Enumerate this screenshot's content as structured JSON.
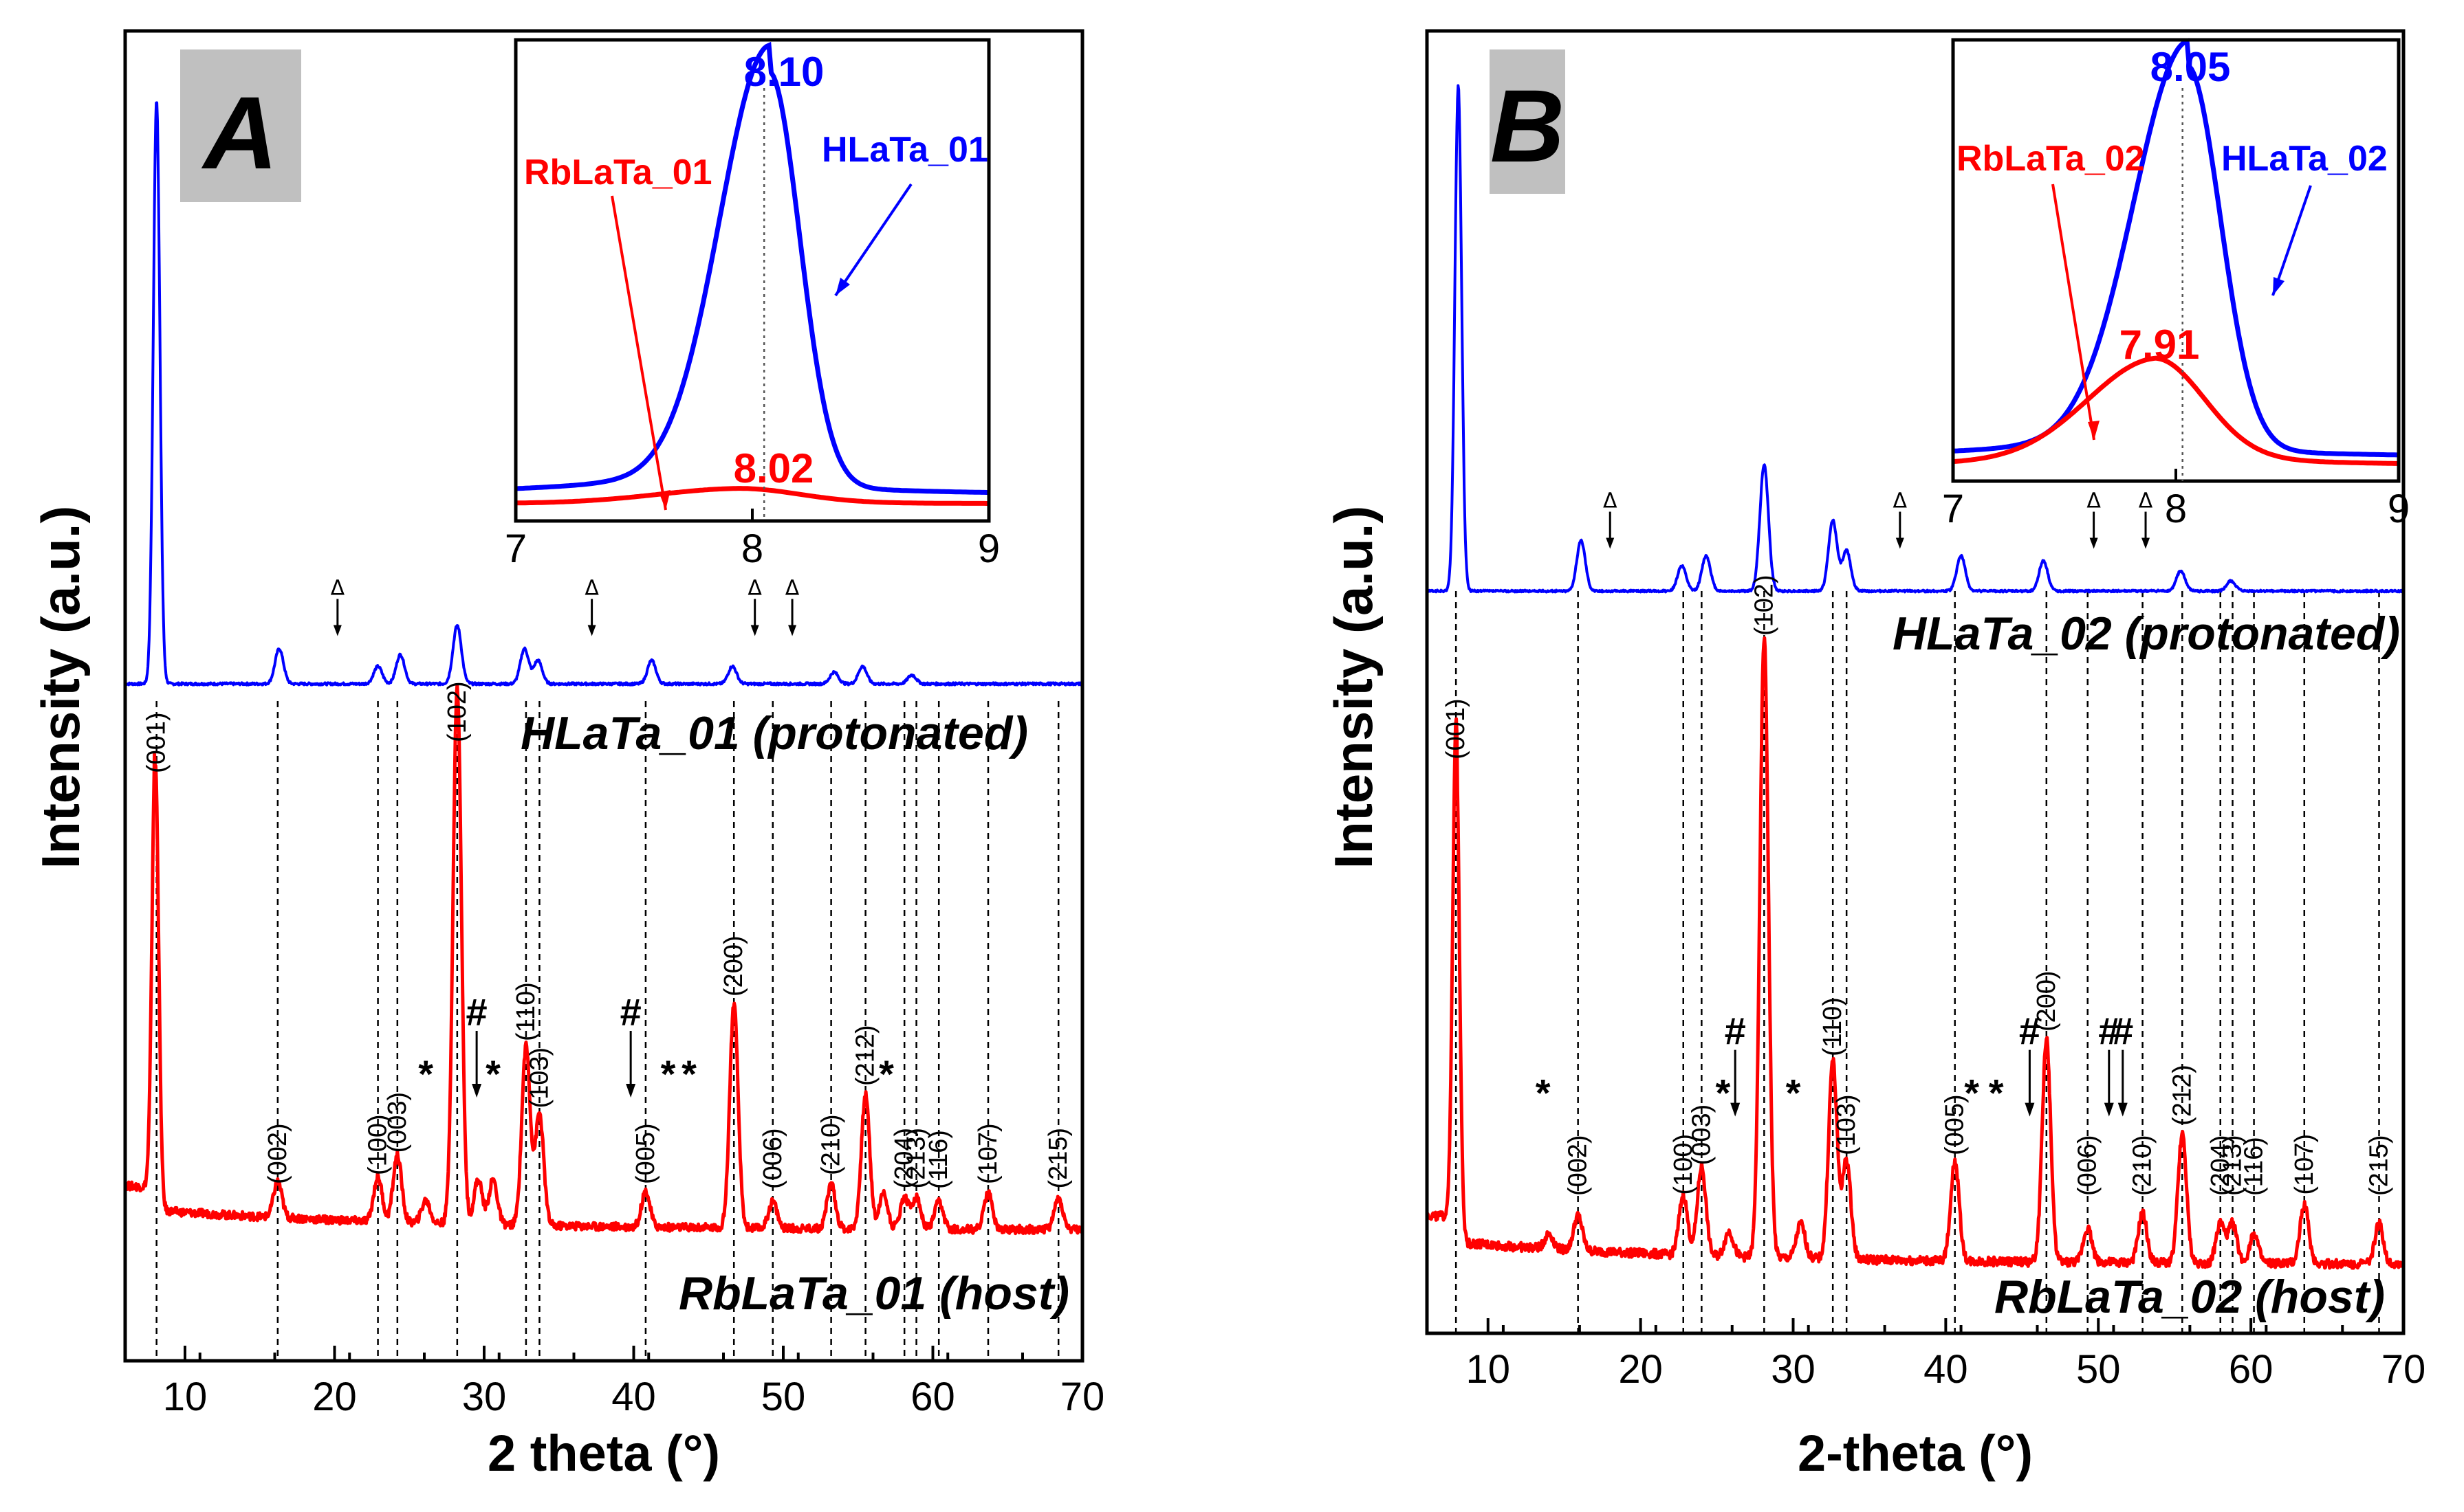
{
  "chart_data": [
    {
      "panel": "A",
      "type": "line",
      "xlabel": "2 theta (°)",
      "ylabel": "Intensity (a.u.)",
      "xlim": [
        6,
        70
      ],
      "xticks": [
        "10",
        "20",
        "30",
        "40",
        "50",
        "60",
        "70"
      ],
      "series": [
        {
          "name": "HLaTa_01 (protonated)",
          "color": "#0000ff",
          "peaks": [
            [
              8.1,
              1.0
            ],
            [
              16.3,
              0.06
            ],
            [
              22.9,
              0.03
            ],
            [
              24.4,
              0.05
            ],
            [
              28.2,
              0.1
            ],
            [
              32.7,
              0.06
            ],
            [
              33.6,
              0.04
            ],
            [
              41.2,
              0.04
            ],
            [
              46.6,
              0.03
            ],
            [
              53.4,
              0.02
            ],
            [
              55.3,
              0.03
            ],
            [
              58.6,
              0.015
            ]
          ]
        },
        {
          "name": "RbLaTa_01 (host)",
          "color": "#ff0000",
          "peaks": [
            [
              8.02,
              1.0
            ],
            [
              16.2,
              0.08
            ],
            [
              22.9,
              0.1
            ],
            [
              24.2,
              0.15
            ],
            [
              26.1,
              0.05
            ],
            [
              28.2,
              1.2
            ],
            [
              29.6,
              0.1
            ],
            [
              30.6,
              0.1
            ],
            [
              32.8,
              0.4
            ],
            [
              33.7,
              0.25
            ],
            [
              40.8,
              0.08
            ],
            [
              46.7,
              0.5
            ],
            [
              49.3,
              0.06
            ],
            [
              53.2,
              0.1
            ],
            [
              55.5,
              0.3
            ],
            [
              56.7,
              0.08
            ],
            [
              58.1,
              0.07
            ],
            [
              58.9,
              0.07
            ],
            [
              60.4,
              0.06
            ],
            [
              63.7,
              0.08
            ],
            [
              68.4,
              0.07
            ]
          ]
        }
      ],
      "hkl_labels": [
        {
          "x": 8.1,
          "text": "(001)"
        },
        {
          "x": 16.2,
          "text": "(002)"
        },
        {
          "x": 22.9,
          "text": "(100)"
        },
        {
          "x": 24.2,
          "text": "(003)"
        },
        {
          "x": 28.2,
          "text": "(102)"
        },
        {
          "x": 32.8,
          "text": "(110)"
        },
        {
          "x": 33.7,
          "text": "(103)"
        },
        {
          "x": 40.8,
          "text": "(005)"
        },
        {
          "x": 46.7,
          "text": "(200)"
        },
        {
          "x": 49.3,
          "text": "(006)"
        },
        {
          "x": 53.2,
          "text": "(210)"
        },
        {
          "x": 55.5,
          "text": "(212)"
        },
        {
          "x": 58.1,
          "text": "(204)"
        },
        {
          "x": 58.9,
          "text": "(213)"
        },
        {
          "x": 60.4,
          "text": "(116)"
        },
        {
          "x": 63.7,
          "text": "(107)"
        },
        {
          "x": 68.4,
          "text": "(215)"
        }
      ],
      "impurity_marks": [
        {
          "x": 26.1,
          "text": "*"
        },
        {
          "x": 29.5,
          "text": "#"
        },
        {
          "x": 30.6,
          "text": "*"
        },
        {
          "x": 39.8,
          "text": "#"
        },
        {
          "x": 42.3,
          "text": "*"
        },
        {
          "x": 43.7,
          "text": "*"
        },
        {
          "x": 56.9,
          "text": "*"
        }
      ],
      "protonated_triangles": [
        20.2,
        37.2,
        48.1,
        50.6
      ],
      "inset": {
        "xlim": [
          7,
          9
        ],
        "xticks": [
          "7",
          "8",
          "9"
        ],
        "blue_peak_label": "8.10",
        "red_peak_label": "8.02",
        "blue_name": "HLaTa_01",
        "red_name": "RbLaTa_01"
      }
    },
    {
      "panel": "B",
      "type": "line",
      "xlabel": "2-theta (°)",
      "ylabel": "Intensity (a.u.)",
      "xlim": [
        6,
        70
      ],
      "xticks": [
        "10",
        "20",
        "30",
        "40",
        "50",
        "60",
        "70"
      ],
      "series": [
        {
          "name": "HLaTa_02 (protonated)",
          "color": "#0000ff",
          "peaks": [
            [
              8.05,
              1.0
            ],
            [
              16.1,
              0.1
            ],
            [
              22.7,
              0.05
            ],
            [
              24.3,
              0.07
            ],
            [
              28.1,
              0.25
            ],
            [
              32.6,
              0.14
            ],
            [
              33.5,
              0.08
            ],
            [
              41.0,
              0.07
            ],
            [
              46.4,
              0.06
            ],
            [
              55.4,
              0.04
            ],
            [
              58.7,
              0.02
            ]
          ]
        },
        {
          "name": "RbLaTa_02 (host)",
          "color": "#ff0000",
          "peaks": [
            [
              7.91,
              1.0
            ],
            [
              14.0,
              0.03
            ],
            [
              15.9,
              0.07
            ],
            [
              22.8,
              0.12
            ],
            [
              24.0,
              0.18
            ],
            [
              25.8,
              0.05
            ],
            [
              28.1,
              1.25
            ],
            [
              30.5,
              0.07
            ],
            [
              32.6,
              0.4
            ],
            [
              33.5,
              0.2
            ],
            [
              40.6,
              0.2
            ],
            [
              46.6,
              0.45
            ],
            [
              49.3,
              0.07
            ],
            [
              52.9,
              0.1
            ],
            [
              55.5,
              0.26
            ],
            [
              58.0,
              0.08
            ],
            [
              58.8,
              0.08
            ],
            [
              60.2,
              0.06
            ],
            [
              63.5,
              0.12
            ],
            [
              68.4,
              0.08
            ]
          ]
        }
      ],
      "hkl_labels": [
        {
          "x": 7.9,
          "text": "(001)"
        },
        {
          "x": 15.9,
          "text": "(002)"
        },
        {
          "x": 22.8,
          "text": "(100)"
        },
        {
          "x": 24.0,
          "text": "(003)"
        },
        {
          "x": 28.1,
          "text": "(102)"
        },
        {
          "x": 32.6,
          "text": "(110)"
        },
        {
          "x": 33.5,
          "text": "(103)"
        },
        {
          "x": 40.6,
          "text": "(005)"
        },
        {
          "x": 46.6,
          "text": "(200)"
        },
        {
          "x": 49.3,
          "text": "(006)"
        },
        {
          "x": 52.9,
          "text": "(210)"
        },
        {
          "x": 55.5,
          "text": "(212)"
        },
        {
          "x": 58.0,
          "text": "(204)"
        },
        {
          "x": 58.8,
          "text": "(213)"
        },
        {
          "x": 60.2,
          "text": "(116)"
        },
        {
          "x": 63.5,
          "text": "(107)"
        },
        {
          "x": 68.4,
          "text": "(215)"
        }
      ],
      "impurity_marks": [
        {
          "x": 13.6,
          "text": "*"
        },
        {
          "x": 25.4,
          "text": "*"
        },
        {
          "x": 26.2,
          "text": "#"
        },
        {
          "x": 30.0,
          "text": "*"
        },
        {
          "x": 41.7,
          "text": "*"
        },
        {
          "x": 43.3,
          "text": "*"
        },
        {
          "x": 45.5,
          "text": "#"
        },
        {
          "x": 50.7,
          "text": "#"
        },
        {
          "x": 51.6,
          "text": "#"
        }
      ],
      "protonated_triangles": [
        18.0,
        37.0,
        49.7,
        53.1
      ],
      "inset": {
        "xlim": [
          7,
          9
        ],
        "xticks": [
          "7",
          "8",
          "9"
        ],
        "blue_peak_label": "8.05",
        "red_peak_label": "7.91",
        "blue_name": "HLaTa_02",
        "red_name": "RbLaTa_02"
      }
    }
  ]
}
